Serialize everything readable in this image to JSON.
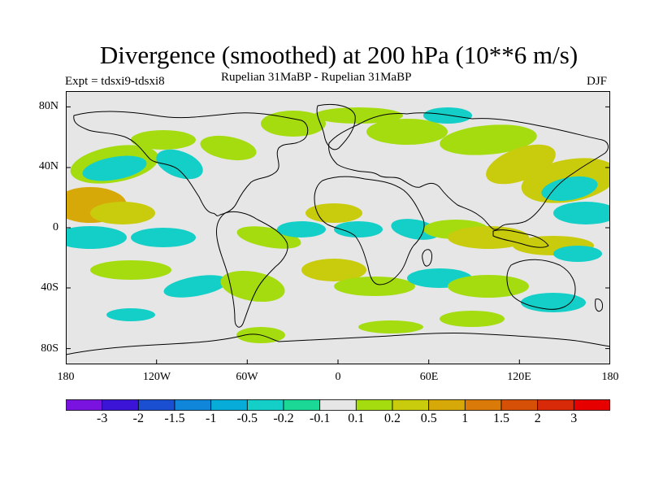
{
  "title": "Divergence (smoothed) at 200 hPa (10**6 m/s)",
  "experiment": "Expt = tdsxi9-tdsxi8",
  "subtitle": "Rupelian  31MaBP - Rupelian  31MaBP",
  "season": "DJF",
  "latitude_labels": [
    "80N",
    "40N",
    "0",
    "40S",
    "80S"
  ],
  "longitude_labels": [
    "180",
    "120W",
    "60W",
    "0",
    "60E",
    "120E",
    "180"
  ],
  "colorbar": {
    "colors": [
      "#7a12e0",
      "#3c14d8",
      "#1a4fd2",
      "#0f86da",
      "#08acd8",
      "#14cfc8",
      "#1cd896",
      "#e6e6e6",
      "#a4dc10",
      "#c8cc0c",
      "#d6a808",
      "#da7a08",
      "#d65008",
      "#d82a08",
      "#e60000"
    ],
    "labels": [
      "-3",
      "-2",
      "-1.5",
      "-1",
      "-0.5",
      "-0.2",
      "-0.1",
      "0.1",
      "0.2",
      "0.5",
      "1",
      "1.5",
      "2",
      "3"
    ]
  }
}
